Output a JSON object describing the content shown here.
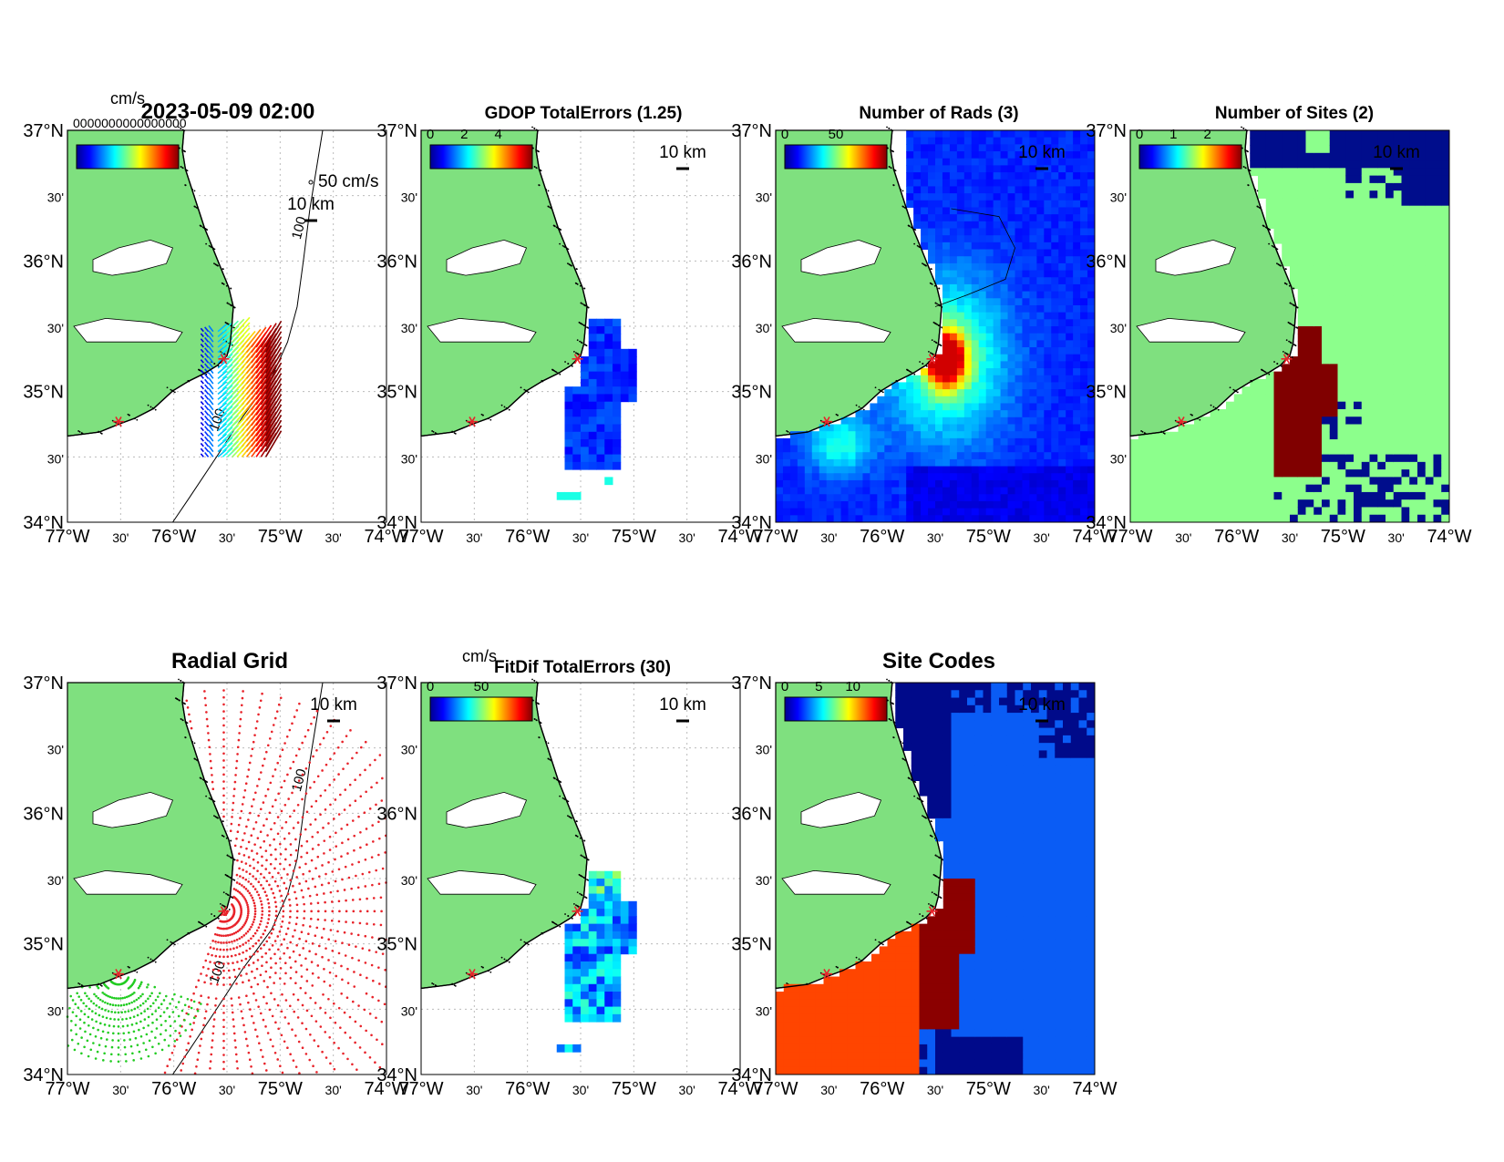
{
  "figure": {
    "timestamp": "2023-05-09 02:00",
    "units_label": "cm/s",
    "overlap_garble": "0000000000000000",
    "lon_labels": [
      "77°W",
      "30'",
      "76°W",
      "30'",
      "75°W",
      "30'",
      "74°W"
    ],
    "lat_labels": [
      "37°N",
      "30'",
      "36°N",
      "30'",
      "35°N",
      "30'",
      "34°N"
    ],
    "scale_label": "10 km",
    "vector_scale_label": "50 cm/s",
    "contour_label": "100",
    "colors": {
      "land": "#7fe07f",
      "grid": "#bbbbbb",
      "site_marker": "#e8232a",
      "radial_site1": "#e8232a",
      "radial_site2": "#22cc22",
      "sites_1": "#8cff8c",
      "sites_2": "#800000",
      "sites_0": "#000d8c",
      "code_a": "#0a5cf5",
      "code_b": "#ff4500",
      "code_c": "#8b0000",
      "code_d": "#000a8a"
    }
  },
  "chart_data": [
    {
      "name": "total-vectors",
      "type": "quiver",
      "title": "2023-05-09 02:00",
      "xlim": [
        -77,
        -74
      ],
      "ylim": [
        34,
        37
      ],
      "colorbar": {
        "label": "cm/s",
        "range": [
          0,
          100
        ]
      },
      "sites": [
        {
          "lon": -75.53,
          "lat": 35.25
        },
        {
          "lon": -76.52,
          "lat": 34.77
        }
      ],
      "extent": {
        "lon": [
          -75.72,
          -75.12
        ],
        "lat": [
          34.5,
          35.47
        ]
      },
      "speed_gradient": "increasing eastward"
    },
    {
      "name": "gdop",
      "type": "heatmap",
      "title": "GDOP TotalErrors (1.25)",
      "xlim": [
        -77,
        -74
      ],
      "ylim": [
        34,
        37
      ],
      "colorbar": {
        "range": [
          0,
          5
        ],
        "ticks": [
          "0",
          "2",
          "4"
        ]
      }
    },
    {
      "name": "number-of-rads",
      "type": "heatmap",
      "title": "Number of Rads (3)",
      "xlim": [
        -77,
        -74
      ],
      "ylim": [
        34,
        37
      ],
      "colorbar": {
        "range": [
          0,
          100
        ],
        "ticks": [
          "0",
          "50"
        ]
      },
      "peak": {
        "lon": -75.4,
        "lat": 35.25
      }
    },
    {
      "name": "number-of-sites",
      "type": "heatmap",
      "title": "Number of Sites (2)",
      "xlim": [
        -77,
        -74
      ],
      "ylim": [
        34,
        37
      ],
      "colorbar": {
        "range": [
          0,
          2
        ],
        "ticks": [
          "0",
          "1",
          "2"
        ]
      },
      "categories": [
        "0",
        "1",
        "2"
      ]
    },
    {
      "name": "radial-grid",
      "type": "scatter",
      "title": "Radial Grid",
      "xlim": [
        -77,
        -74
      ],
      "ylim": [
        34,
        37
      ],
      "series": [
        {
          "name": "site-1",
          "origin": {
            "lon": -75.53,
            "lat": 35.25
          },
          "range_km": [
            3,
            190
          ],
          "bearing_deg": [
            -10,
            200
          ]
        },
        {
          "name": "site-2",
          "origin": {
            "lon": -76.52,
            "lat": 34.77
          },
          "range_km": [
            3,
            80
          ],
          "bearing_deg": [
            110,
            265
          ]
        }
      ]
    },
    {
      "name": "fitdif",
      "type": "heatmap",
      "title": "FitDif TotalErrors (30)",
      "xlim": [
        -77,
        -74
      ],
      "ylim": [
        34,
        37
      ],
      "colorbar": {
        "label": "cm/s",
        "range": [
          0,
          100
        ],
        "ticks": [
          "0",
          "50"
        ]
      }
    },
    {
      "name": "site-codes",
      "type": "heatmap",
      "title": "Site Codes",
      "xlim": [
        -77,
        -74
      ],
      "ylim": [
        34,
        37
      ],
      "colorbar": {
        "range": [
          0,
          12
        ],
        "ticks": [
          "0",
          "5",
          "10"
        ]
      }
    }
  ]
}
